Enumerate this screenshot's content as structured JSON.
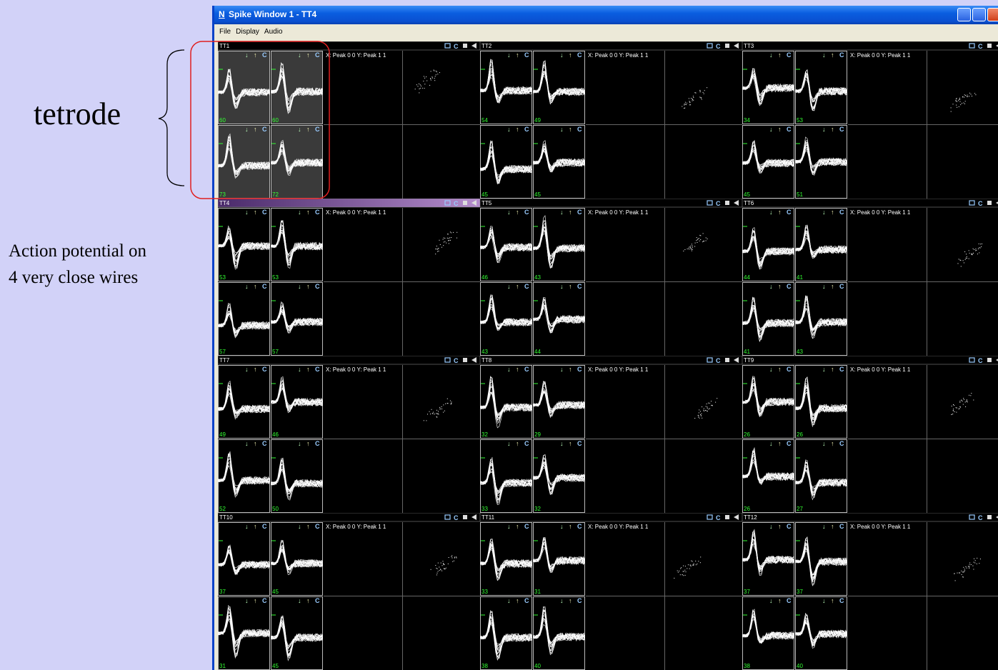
{
  "annotations": {
    "tetrode": "tetrode",
    "caption_line1": "Action potential on",
    "caption_line2": "4 very close wires"
  },
  "window": {
    "logo": "N",
    "title": "Spike Window 1 - TT4",
    "menu": [
      "File",
      "Display",
      "Audio"
    ]
  },
  "panel_buttons": {
    "clear": "C"
  },
  "wave_buttons": {
    "down": "↓",
    "up": "↑",
    "clear": "C"
  },
  "scatter_label": "X: Peak 0 0   Y: Peak 1 1",
  "highlighted_panel": 0,
  "selected_panel": 3,
  "panels": [
    {
      "name": "TT1",
      "counts": [
        60,
        60,
        73,
        72
      ]
    },
    {
      "name": "TT2",
      "counts": [
        54,
        49,
        45,
        45
      ]
    },
    {
      "name": "TT3",
      "counts": [
        34,
        53,
        45,
        51
      ]
    },
    {
      "name": "TT4",
      "counts": [
        53,
        53,
        57,
        57
      ]
    },
    {
      "name": "TT5",
      "counts": [
        46,
        43,
        43,
        44
      ]
    },
    {
      "name": "TT6",
      "counts": [
        44,
        41,
        41,
        43
      ]
    },
    {
      "name": "TT7",
      "counts": [
        49,
        46,
        52,
        50
      ]
    },
    {
      "name": "TT8",
      "counts": [
        32,
        29,
        33,
        32
      ]
    },
    {
      "name": "TT9",
      "counts": [
        26,
        26,
        26,
        27
      ]
    },
    {
      "name": "TT10",
      "counts": [
        37,
        45,
        31,
        45
      ]
    },
    {
      "name": "TT11",
      "counts": [
        33,
        31,
        38,
        40
      ]
    },
    {
      "name": "TT12",
      "counts": [
        37,
        37,
        38,
        40
      ]
    }
  ]
}
